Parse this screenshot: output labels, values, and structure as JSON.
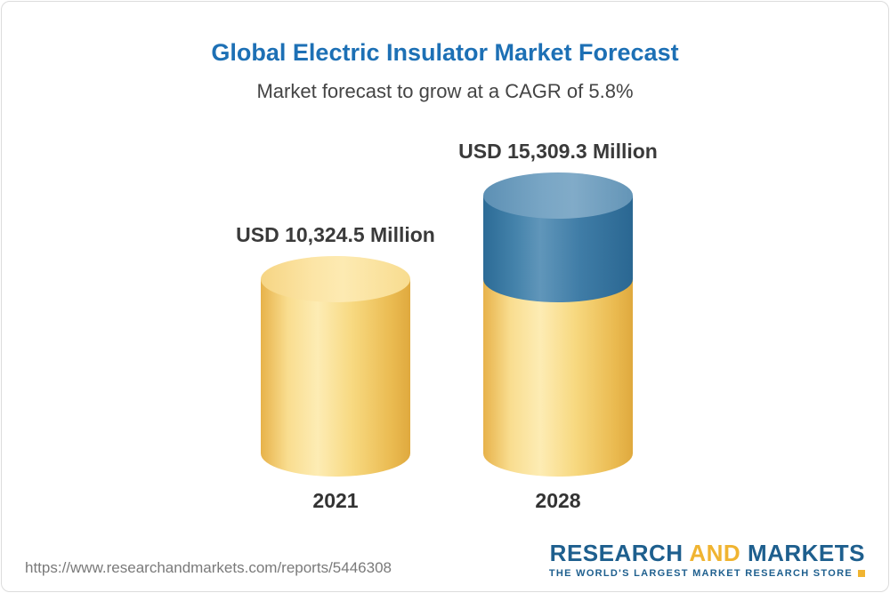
{
  "page": {
    "title": "Global Electric Insulator Market Forecast",
    "subtitle": "Market forecast to grow at a CAGR of 5.8%"
  },
  "chart_data": {
    "type": "bar",
    "variant": "3d-cylinder",
    "title": "Global Electric Insulator Market Forecast",
    "subtitle": "Market forecast to grow at a CAGR of 5.8%",
    "cagr_percent": 5.8,
    "unit": "USD Million",
    "categories": [
      "2021",
      "2028"
    ],
    "values": [
      10324.5,
      15309.3
    ],
    "value_labels": [
      "USD 10,324.5 Million",
      "USD 15,309.3 Million"
    ],
    "series_note": "2028 cylinder shows the 2021 base value in yellow and the growth increment (4,984.8) in blue",
    "colors": {
      "base_segment": "#f7d478",
      "growth_segment": "#3c78a4",
      "title_text": "#1d70b5",
      "label_text": "#3a3a3a"
    },
    "legend": "none",
    "grid": false,
    "ylim": [
      0,
      15309.3
    ]
  },
  "footer": {
    "url": "https://www.researchandmarkets.com/reports/5446308",
    "logo": {
      "part1": "RESEARCH",
      "part2": "AND",
      "part3": "MARKETS",
      "tagline": "THE WORLD'S LARGEST MARKET RESEARCH STORE"
    }
  }
}
